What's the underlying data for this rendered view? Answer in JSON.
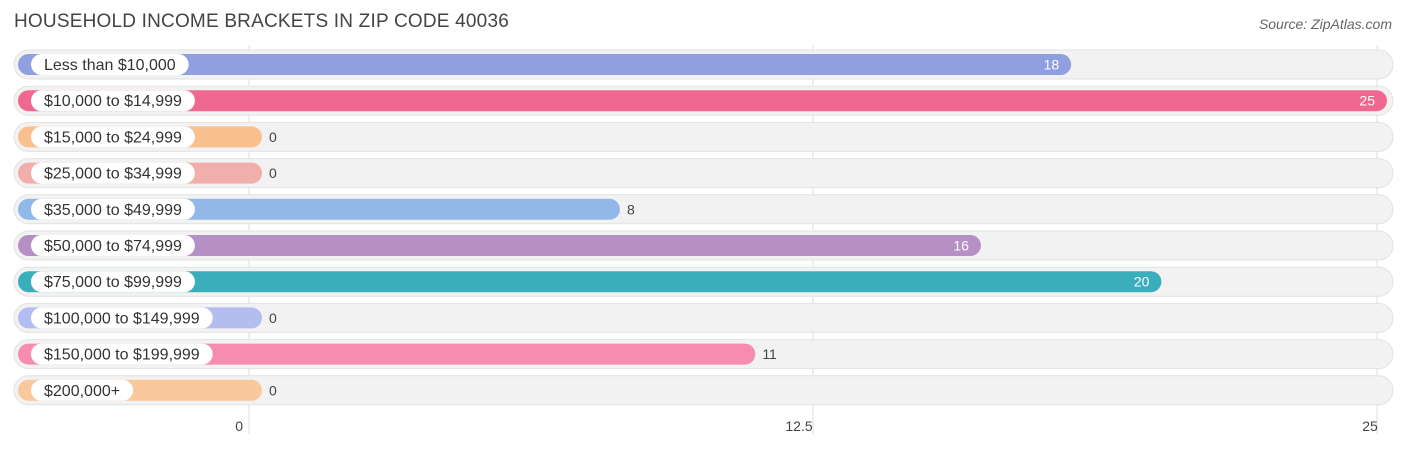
{
  "header": {
    "title": "HOUSEHOLD INCOME BRACKETS IN ZIP CODE 40036",
    "source": "Source: ZipAtlas.com"
  },
  "chart_data": {
    "type": "bar",
    "orientation": "horizontal",
    "title": "HOUSEHOLD INCOME BRACKETS IN ZIP CODE 40036",
    "xlabel": "",
    "ylabel": "",
    "xlim": [
      0,
      25
    ],
    "ticks": [
      "0",
      "12.5",
      "25"
    ],
    "tick_values": [
      0,
      12.5,
      25
    ],
    "grid": true,
    "categories": [
      "Less than $10,000",
      "$10,000 to $14,999",
      "$15,000 to $24,999",
      "$25,000 to $34,999",
      "$35,000 to $49,999",
      "$50,000 to $74,999",
      "$75,000 to $99,999",
      "$100,000 to $149,999",
      "$150,000 to $199,999",
      "$200,000+"
    ],
    "values": [
      18,
      25,
      0,
      0,
      8,
      16,
      20,
      0,
      11,
      0
    ],
    "colors": [
      "#8f9fe0",
      "#f06892",
      "#f9c08e",
      "#f2aeaa",
      "#92b8e8",
      "#b68fc4",
      "#3aaebb",
      "#b4bdf0",
      "#f68cb0",
      "#f9c89c"
    ]
  }
}
